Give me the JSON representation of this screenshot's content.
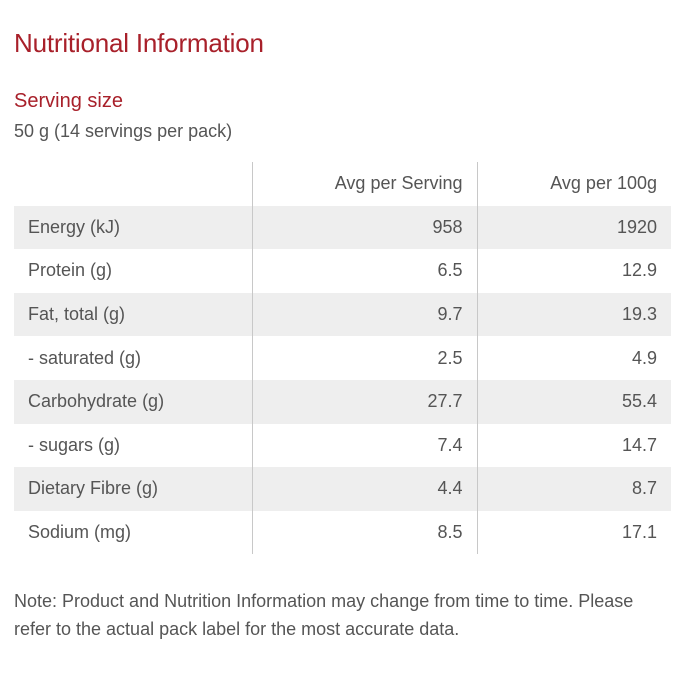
{
  "title": "Nutritional Information",
  "serving": {
    "heading": "Serving size",
    "value": "50 g (14 servings per pack)"
  },
  "table": {
    "headers": [
      "",
      "Avg per Serving",
      "Avg per 100g"
    ],
    "rows": [
      {
        "label": "Energy (kJ)",
        "per_serving": "958",
        "per_100g": "1920"
      },
      {
        "label": "Protein (g)",
        "per_serving": "6.5",
        "per_100g": "12.9"
      },
      {
        "label": "Fat, total (g)",
        "per_serving": "9.7",
        "per_100g": "19.3"
      },
      {
        "label": "- saturated (g)",
        "per_serving": "2.5",
        "per_100g": "4.9"
      },
      {
        "label": "Carbohydrate (g)",
        "per_serving": "27.7",
        "per_100g": "55.4"
      },
      {
        "label": "- sugars (g)",
        "per_serving": "7.4",
        "per_100g": "14.7"
      },
      {
        "label": "Dietary Fibre (g)",
        "per_serving": "4.4",
        "per_100g": "8.7"
      },
      {
        "label": "Sodium (mg)",
        "per_serving": "8.5",
        "per_100g": "17.1"
      }
    ]
  },
  "note": "Note: Product and Nutrition Information may change from time to time. Please refer to the actual pack label for the most accurate data.",
  "colors": {
    "heading": "#a8202a",
    "text": "#555555",
    "row_stripe": "#eeeeee",
    "divider": "#c8c8c8"
  }
}
